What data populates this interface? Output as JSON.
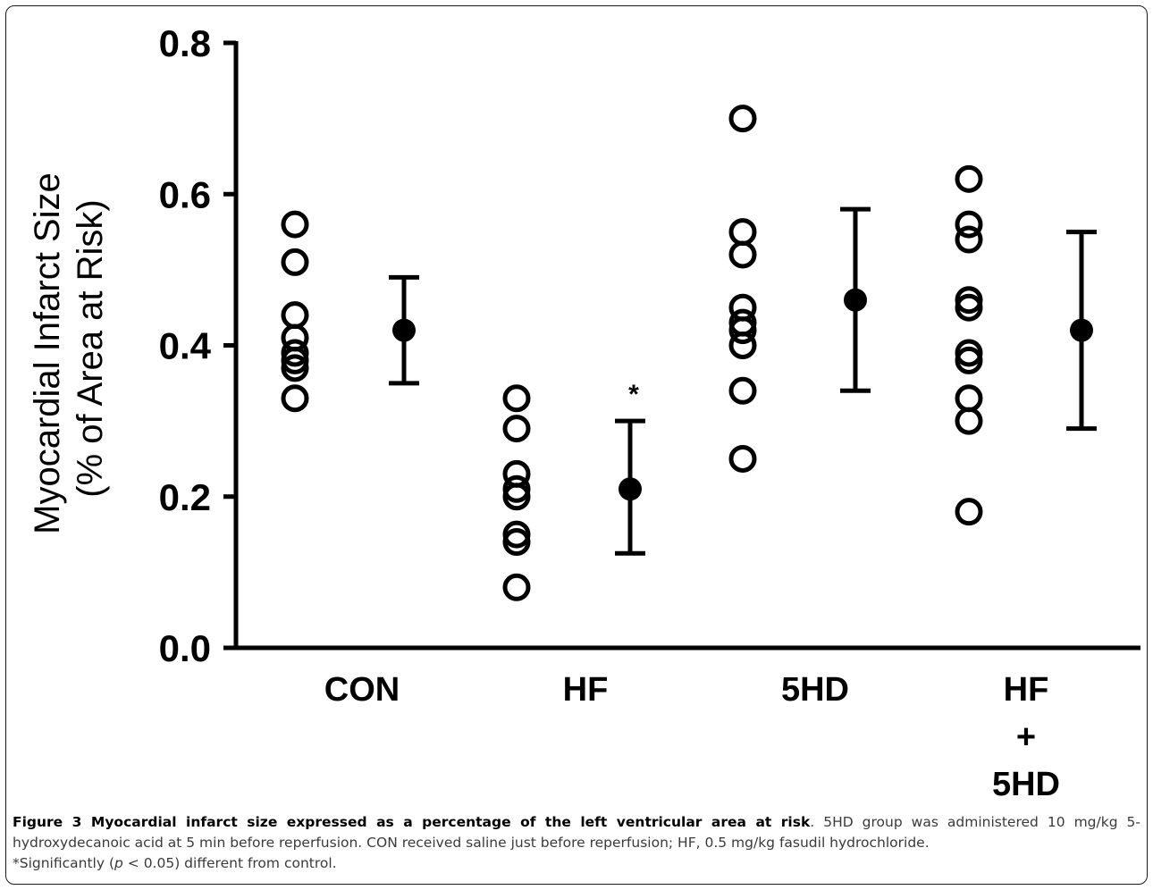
{
  "figure": {
    "caption_title": "Figure 3 Myocardial infarct size expressed as a percentage of the left ventricular area at risk",
    "caption_text_1": ". 5HD group was administered 10 mg/kg 5-hydroxydecanoic acid at 5 min before reperfusion. CON received saline just before reperfusion; HF, 0.5 mg/kg fasudil hydrochloride.",
    "caption_text_2": "*Significantly (",
    "caption_p": "p",
    "caption_text_3": " < 0.05) different from control."
  },
  "chart_data": {
    "type": "scatter",
    "title": "",
    "ylabel_line1": "Myocardial Infarct Size",
    "ylabel_line2": "(% of  Area at Risk)",
    "xlabel": "",
    "ylim": [
      0,
      0.8
    ],
    "yticks": [
      "0.0",
      "0.2",
      "0.4",
      "0.6",
      "0.8"
    ],
    "grid": false,
    "categories": [
      {
        "lines": [
          "CON"
        ]
      },
      {
        "lines": [
          "HF"
        ]
      },
      {
        "lines": [
          "5HD"
        ]
      },
      {
        "lines": [
          "HF",
          "+",
          "5HD"
        ]
      }
    ],
    "groups": [
      {
        "individual": [
          0.56,
          0.51,
          0.44,
          0.41,
          0.39,
          0.38,
          0.37,
          0.33
        ],
        "mean": 0.42,
        "err_upper": 0.49,
        "err_lower": 0.35,
        "annotation": ""
      },
      {
        "individual": [
          0.33,
          0.29,
          0.23,
          0.21,
          0.2,
          0.15,
          0.14,
          0.08
        ],
        "mean": 0.21,
        "err_upper": 0.3,
        "err_lower": 0.125,
        "annotation": "*"
      },
      {
        "individual": [
          0.7,
          0.55,
          0.52,
          0.45,
          0.43,
          0.42,
          0.4,
          0.34,
          0.25
        ],
        "mean": 0.46,
        "err_upper": 0.58,
        "err_lower": 0.34,
        "annotation": ""
      },
      {
        "individual": [
          0.62,
          0.56,
          0.54,
          0.46,
          0.45,
          0.39,
          0.38,
          0.33,
          0.3,
          0.18
        ],
        "mean": 0.42,
        "err_upper": 0.55,
        "err_lower": 0.29,
        "annotation": ""
      }
    ],
    "marker_individual": "open-circle",
    "marker_mean": "filled-circle-with-sd-bars"
  }
}
